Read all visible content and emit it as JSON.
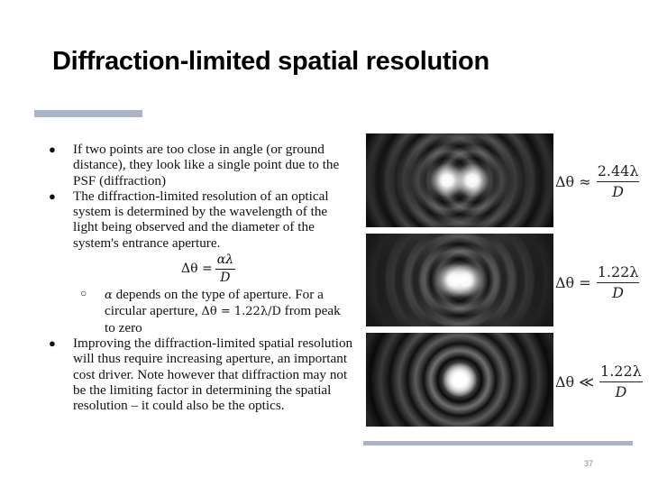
{
  "slide": {
    "title": "Diffraction-limited spatial resolution",
    "page_number": "37"
  },
  "bullets": [
    {
      "marker": "●",
      "text": "If two points are too close in angle (or ground distance), they look like a single point due to the PSF (diffraction)"
    },
    {
      "marker": "●",
      "text": "The diffraction-limited resolution of an optical system is determined by the wavelength of the light being observed and the diameter of the system's entrance aperture."
    },
    {
      "marker": "●",
      "text": "Improving the diffraction-limited spatial resolution will thus require increasing aperture, an important cost driver. Note however that diffraction may not be the limiting factor in determining the spatial resolution – it could also be the optics."
    }
  ],
  "equation": {
    "lhs": "Δθ =",
    "numerator": "αλ",
    "denominator": "D"
  },
  "sub_bullet": {
    "marker": "○",
    "alpha": "α",
    "text_part1": " depends on the type of aperture. For a circular aperture, ",
    "math": "Δθ = 1.22λ/D",
    "text_part2": " from peak to zero"
  },
  "figures": [
    {
      "caption_lhs": "Δθ ≈",
      "numerator": "2.44λ",
      "denominator": "D",
      "separation": 0.4
    },
    {
      "caption_lhs": "Δθ =",
      "numerator": "1.22λ",
      "denominator": "D",
      "separation": 0.2
    },
    {
      "caption_lhs": "Δθ ≪",
      "numerator": "1.22λ",
      "denominator": "D",
      "separation": 0
    }
  ],
  "colors": {
    "accent_bar": "#a9b4c8",
    "title_text": "#000000",
    "body_text": "#111111"
  }
}
